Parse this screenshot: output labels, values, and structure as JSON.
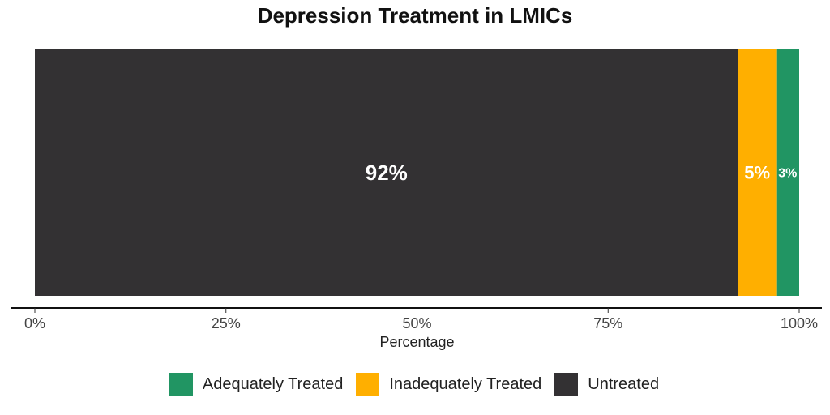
{
  "chart_data": {
    "type": "bar",
    "orientation": "horizontal",
    "stacked": true,
    "title": "Depression Treatment in LMICs",
    "xlabel": "Percentage",
    "ylabel": "",
    "xlim": [
      0,
      100
    ],
    "x_ticks": [
      "0%",
      "25%",
      "50%",
      "75%",
      "100%"
    ],
    "x_tick_values": [
      0,
      25,
      50,
      75,
      100
    ],
    "grid": false,
    "legend_position": "bottom",
    "segments": [
      {
        "name": "Untreated",
        "value": 92,
        "label": "92%",
        "color": "#333133"
      },
      {
        "name": "Inadequately Treated",
        "value": 5,
        "label": "5%",
        "color": "#FFAF00"
      },
      {
        "name": "Adequately Treated",
        "value": 3,
        "label": "3%",
        "color": "#219563"
      }
    ],
    "legend": [
      {
        "name": "Adequately Treated",
        "color": "#219563"
      },
      {
        "name": "Inadequately Treated",
        "color": "#FFAF00"
      },
      {
        "name": "Untreated",
        "color": "#333133"
      }
    ]
  }
}
